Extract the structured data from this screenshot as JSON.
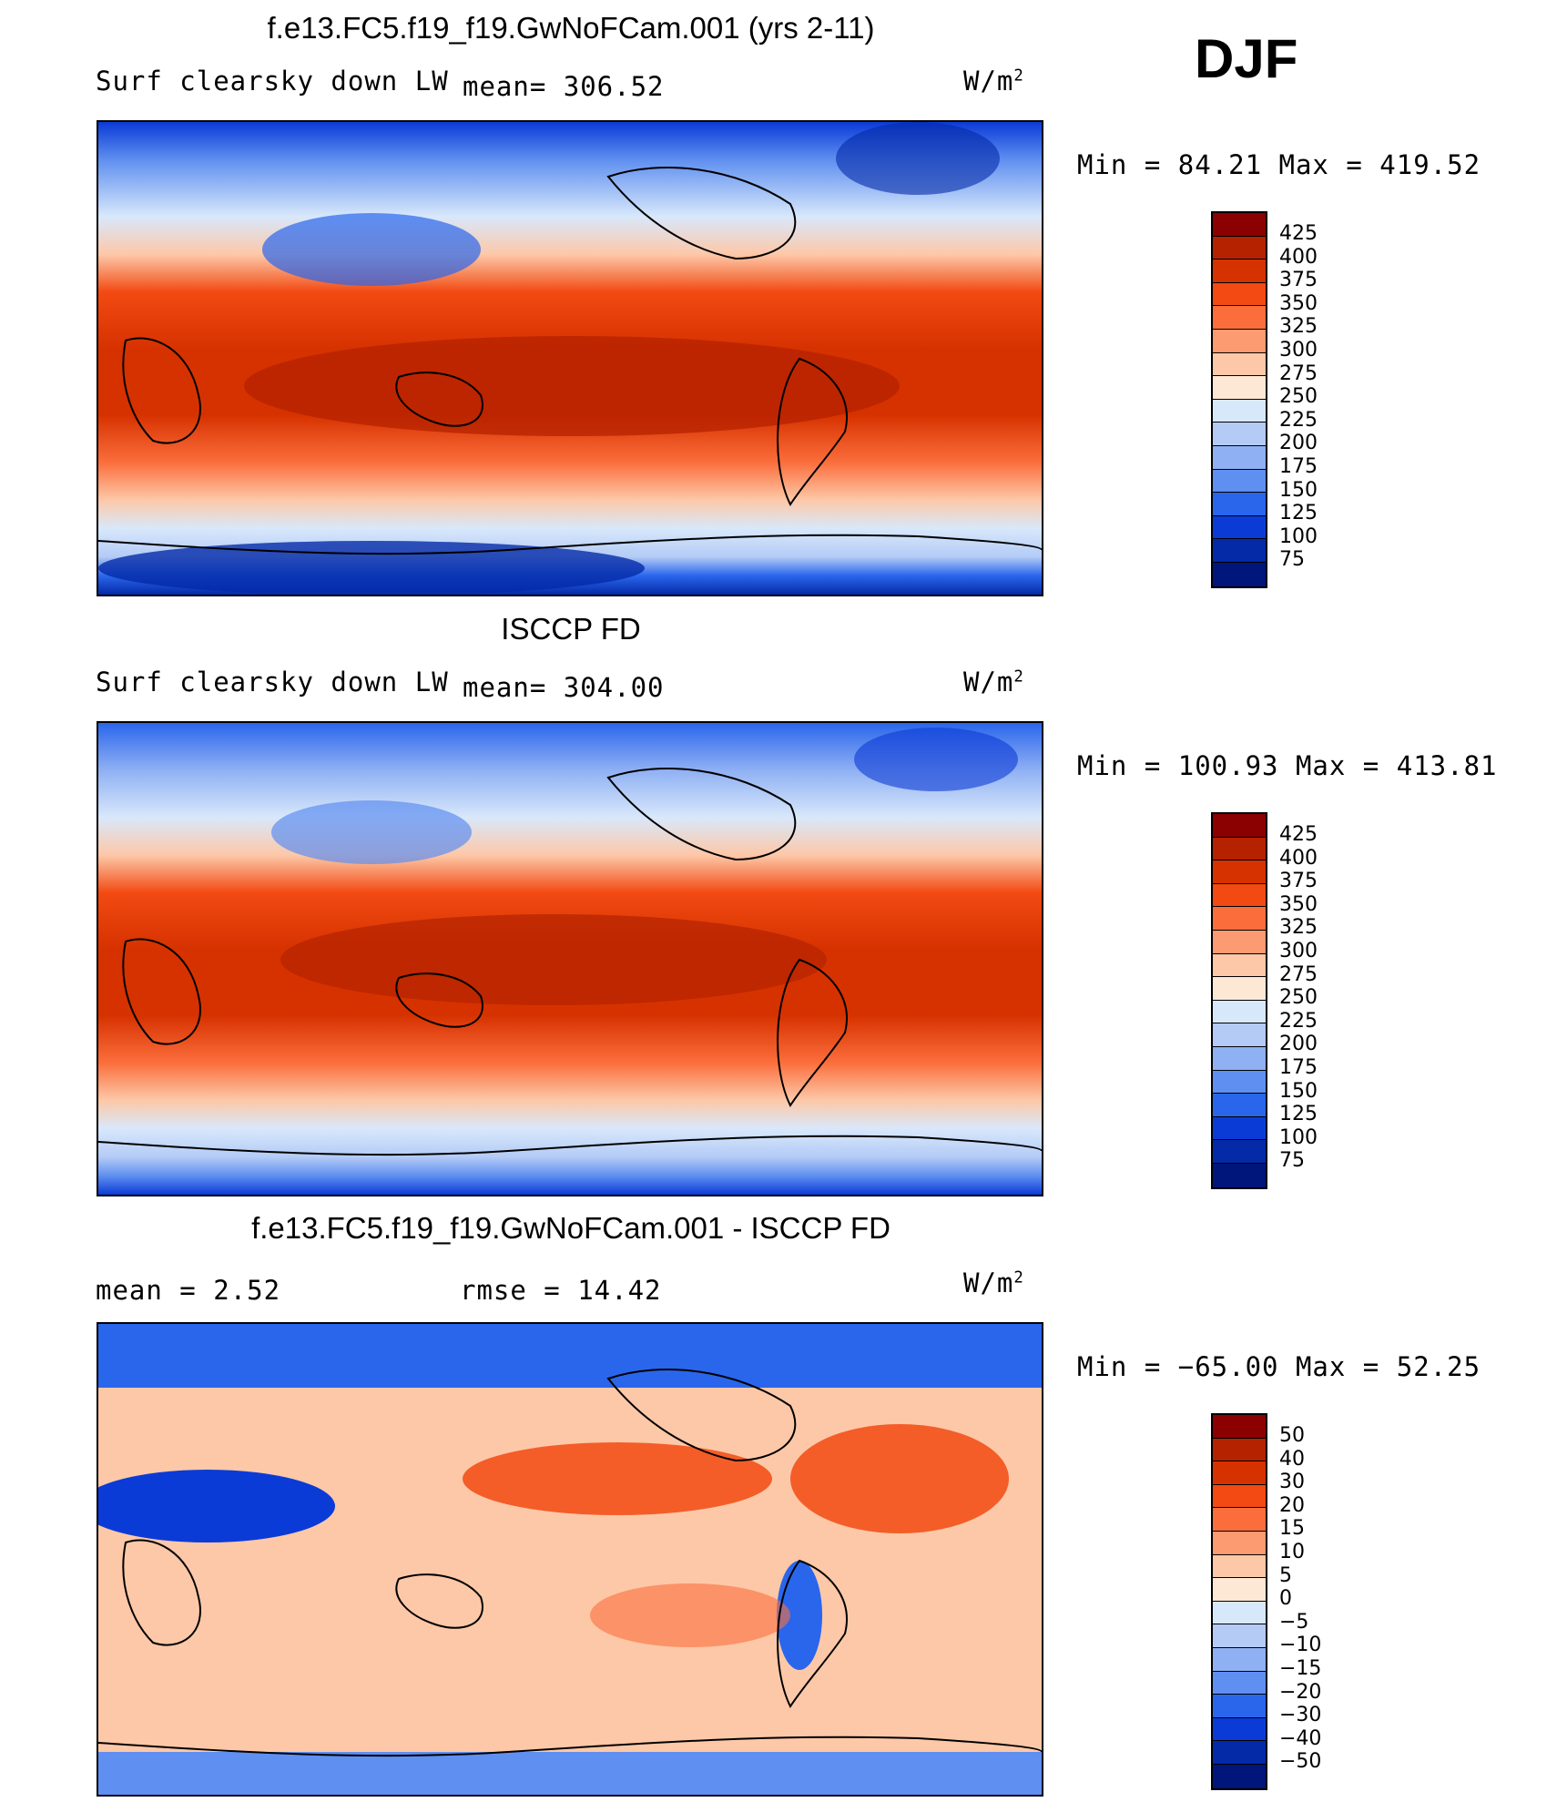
{
  "season": "DJF",
  "units": "W/m",
  "units_exp": "2",
  "panels": {
    "model": {
      "title": "f.e13.FC5.f19_f19.GwNoFCam.001 (yrs 2-11)",
      "field": "Surf clearsky down LW",
      "mean_text": "mean= 306.52",
      "minmax_text": "Min =  84.21 Max = 419.52"
    },
    "obs": {
      "title": "ISCCP FD",
      "field": "Surf clearsky down LW",
      "mean_text": "mean= 304.00",
      "minmax_text": "Min = 100.93 Max = 413.81"
    },
    "diff": {
      "title": "f.e13.FC5.f19_f19.GwNoFCam.001 - ISCCP FD",
      "mean_text": "mean =    2.52",
      "rmse_text": "rmse =   14.42",
      "minmax_text": "Min = −65.00 Max =   52.25"
    }
  },
  "colorbars": {
    "abs_levels": [
      "425",
      "400",
      "375",
      "350",
      "325",
      "300",
      "275",
      "250",
      "225",
      "200",
      "175",
      "150",
      "125",
      "100",
      "75"
    ],
    "abs_colors": [
      "#8b0000",
      "#b42200",
      "#d63200",
      "#f24a12",
      "#fb6e3c",
      "#fc9a72",
      "#fdc8a8",
      "#fde8d6",
      "#d8e8fb",
      "#b4cbf6",
      "#8fb0f3",
      "#5f8ff0",
      "#2a66ec",
      "#0b3bd6",
      "#042aa8",
      "#00167a"
    ],
    "diff_levels": [
      "50",
      "40",
      "30",
      "20",
      "15",
      "10",
      "5",
      "0",
      "−5",
      "−10",
      "−15",
      "−20",
      "−30",
      "−40",
      "−50"
    ],
    "diff_colors": [
      "#8b0000",
      "#b42200",
      "#d63200",
      "#f24a12",
      "#fb6e3c",
      "#fc9a72",
      "#fdc8a8",
      "#fde8d6",
      "#d8e8fb",
      "#b4cbf6",
      "#8fb0f3",
      "#5f8ff0",
      "#2a66ec",
      "#0b3bd6",
      "#042aa8",
      "#00167a"
    ]
  }
}
